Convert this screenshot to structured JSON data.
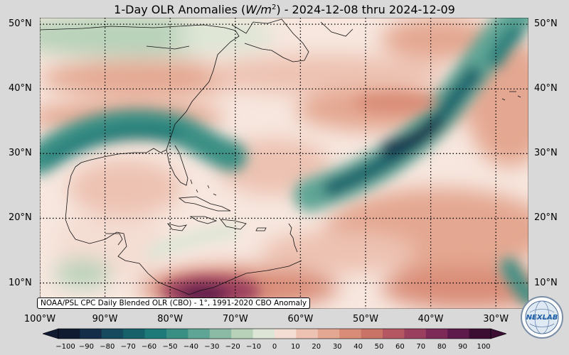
{
  "title": {
    "prefix": "1-Day OLR Anomalies (",
    "unit_base": "W/m",
    "unit_exp": "2",
    "suffix": ") - 2024-12-08 thru 2024-12-09"
  },
  "map": {
    "lat_labels": [
      "50°N",
      "40°N",
      "30°N",
      "20°N",
      "10°N"
    ],
    "lon_labels": [
      "100°W",
      "90°W",
      "80°W",
      "70°W",
      "60°W",
      "50°W",
      "40°W",
      "30°W"
    ],
    "lat_values": [
      50,
      40,
      30,
      20,
      10
    ],
    "lon_values": [
      -100,
      -90,
      -80,
      -70,
      -60,
      -50,
      -40,
      -30
    ],
    "extent": {
      "lon_min": -100,
      "lon_max": -25,
      "lat_min": 6,
      "lat_max": 51
    },
    "grid": "dotted"
  },
  "credit": "NOAA/PSL CPC Daily Blended OLR (CBO) - 1°, 1991-2020 CBO Anomaly",
  "colorbar": {
    "ticks": [
      "−100",
      "−90",
      "−80",
      "−70",
      "−60",
      "−50",
      "−40",
      "−30",
      "−20",
      "−10",
      "0",
      "10",
      "20",
      "30",
      "40",
      "50",
      "60",
      "70",
      "80",
      "90",
      "100"
    ],
    "colors": [
      "#101a30",
      "#142e4a",
      "#164a5e",
      "#17626a",
      "#1d7a78",
      "#3a8f84",
      "#5fa595",
      "#8cbba5",
      "#b8d2b9",
      "#dde6d6",
      "#f6efe9",
      "#f4ddd3",
      "#edc2b2",
      "#e4a791",
      "#d98d78",
      "#c97266",
      "#b55762",
      "#9b3f5f",
      "#7e2a59",
      "#5e1a4b",
      "#3b0d33"
    ]
  },
  "logo": {
    "text": "NEXLAB",
    "icon": "globe-logo-icon"
  }
}
